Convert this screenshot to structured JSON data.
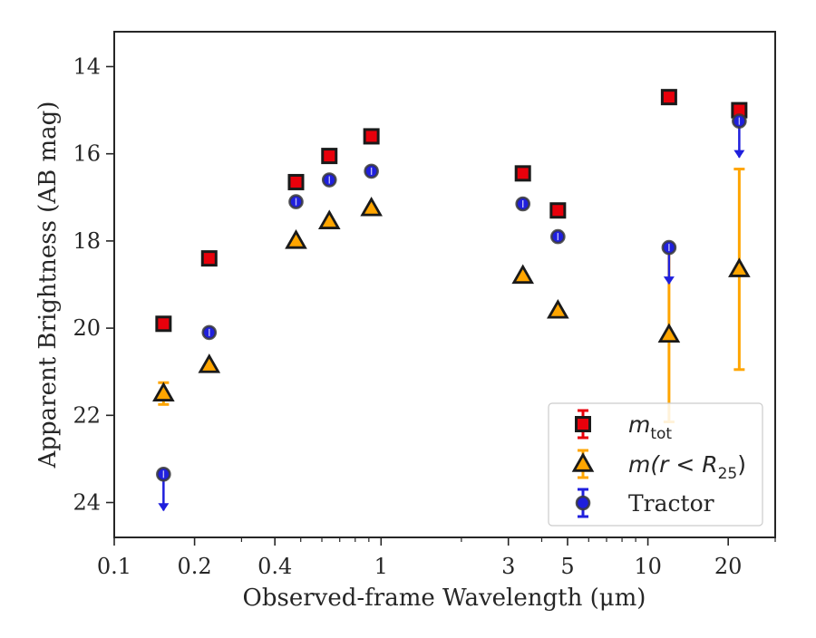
{
  "chart_data": {
    "type": "scatter",
    "xlabel": "Observed-frame Wavelength (μm)",
    "ylabel": "Apparent Brightness (AB mag)",
    "xscale": "log",
    "xlim": [
      0.1,
      30
    ],
    "ylim": [
      24.8,
      13.2
    ],
    "y_inverted": true,
    "x_ticks": [
      0.1,
      0.2,
      0.4,
      1,
      3,
      5,
      10,
      20
    ],
    "x_tick_labels": [
      "0.1",
      "0.2",
      "0.4",
      "1",
      "3",
      "5",
      "10",
      "20"
    ],
    "x_minor_ticks": [
      0.3,
      0.5,
      0.6,
      0.7,
      0.8,
      0.9,
      2,
      4,
      6,
      7,
      8,
      9,
      30
    ],
    "y_ticks": [
      14,
      16,
      18,
      20,
      22,
      24
    ],
    "y_tick_labels": [
      "14",
      "16",
      "18",
      "20",
      "22",
      "24"
    ],
    "grid": false,
    "legend_position": "bottom-right",
    "series": [
      {
        "name": "m_tot",
        "legend_main": "m",
        "legend_sub": "tot",
        "marker": "square",
        "color": "#e8000b",
        "edge_color": "#1a1a1a",
        "points": [
          {
            "x": 0.153,
            "y": 19.9
          },
          {
            "x": 0.227,
            "y": 18.4
          },
          {
            "x": 0.48,
            "y": 16.65
          },
          {
            "x": 0.64,
            "y": 16.05
          },
          {
            "x": 0.92,
            "y": 15.6
          },
          {
            "x": 3.4,
            "y": 16.45
          },
          {
            "x": 4.6,
            "y": 17.3
          },
          {
            "x": 12.0,
            "y": 14.7
          },
          {
            "x": 22.0,
            "y": 15.0
          }
        ]
      },
      {
        "name": "m(r < R_25)",
        "legend_main": "m(r < R",
        "legend_sub": "25",
        "legend_tail": ")",
        "marker": "triangle",
        "color": "#ffa500",
        "edge_color": "#1a1a1a",
        "points": [
          {
            "x": 0.153,
            "y": 21.5,
            "yerr": 0.25
          },
          {
            "x": 0.227,
            "y": 20.85
          },
          {
            "x": 0.48,
            "y": 18.0
          },
          {
            "x": 0.64,
            "y": 17.55
          },
          {
            "x": 0.92,
            "y": 17.25
          },
          {
            "x": 3.4,
            "y": 18.8
          },
          {
            "x": 4.6,
            "y": 19.6
          },
          {
            "x": 12.0,
            "y": 20.15,
            "yerr": 2.0
          },
          {
            "x": 22.0,
            "y": 18.65,
            "yerr": 2.3
          }
        ]
      },
      {
        "name": "Tractor",
        "marker": "circle",
        "color": "#1f1fdd",
        "edge_color": "#3a3a3a",
        "points": [
          {
            "x": 0.153,
            "y": 23.35,
            "upper_limit": true
          },
          {
            "x": 0.227,
            "y": 20.1
          },
          {
            "x": 0.48,
            "y": 17.1
          },
          {
            "x": 0.64,
            "y": 16.6
          },
          {
            "x": 0.92,
            "y": 16.4
          },
          {
            "x": 3.4,
            "y": 17.15
          },
          {
            "x": 4.6,
            "y": 17.9
          },
          {
            "x": 12.0,
            "y": 18.15,
            "upper_limit": true
          },
          {
            "x": 22.0,
            "y": 15.25,
            "upper_limit": true
          }
        ]
      }
    ]
  }
}
